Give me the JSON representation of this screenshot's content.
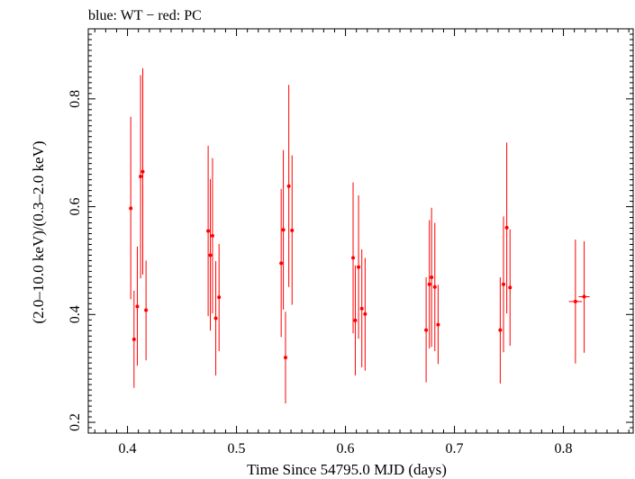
{
  "chart_data": {
    "type": "scatter",
    "title": "blue: WT − red: PC",
    "xlabel": "Time Since 54795.0 MJD (days)",
    "ylabel": "(2.0–10.0 keV)/(0.3–2.0 keV)",
    "xlim": [
      0.364,
      0.864
    ],
    "ylim": [
      0.18,
      0.93
    ],
    "xticks": [
      0.4,
      0.5,
      0.6,
      0.7,
      0.8
    ],
    "xtick_labels": [
      "0.4",
      "0.5",
      "0.6",
      "0.7",
      "0.8"
    ],
    "yticks": [
      0.2,
      0.4,
      0.6,
      0.8
    ],
    "ytick_labels": [
      "0.2",
      "0.4",
      "0.6",
      "0.8"
    ],
    "grid": false,
    "series": [
      {
        "color": "#ff0000",
        "points": [
          {
            "x": 0.403,
            "y": 0.597,
            "ylo": 0.428,
            "yhi": 0.767
          },
          {
            "x": 0.406,
            "y": 0.354,
            "ylo": 0.264,
            "yhi": 0.444
          },
          {
            "x": 0.409,
            "y": 0.415,
            "ylo": 0.305,
            "yhi": 0.526
          },
          {
            "x": 0.412,
            "y": 0.656,
            "ylo": 0.467,
            "yhi": 0.844
          },
          {
            "x": 0.414,
            "y": 0.665,
            "ylo": 0.474,
            "yhi": 0.857
          },
          {
            "x": 0.417,
            "y": 0.408,
            "ylo": 0.315,
            "yhi": 0.5
          },
          {
            "x": 0.474,
            "y": 0.555,
            "ylo": 0.397,
            "yhi": 0.713
          },
          {
            "x": 0.476,
            "y": 0.51,
            "ylo": 0.37,
            "yhi": 0.651
          },
          {
            "x": 0.478,
            "y": 0.546,
            "ylo": 0.402,
            "yhi": 0.69
          },
          {
            "x": 0.481,
            "y": 0.393,
            "ylo": 0.287,
            "yhi": 0.499
          },
          {
            "x": 0.484,
            "y": 0.432,
            "ylo": 0.332,
            "yhi": 0.531
          },
          {
            "x": 0.541,
            "y": 0.495,
            "ylo": 0.358,
            "yhi": 0.633
          },
          {
            "x": 0.543,
            "y": 0.557,
            "ylo": 0.409,
            "yhi": 0.705
          },
          {
            "x": 0.545,
            "y": 0.32,
            "ylo": 0.235,
            "yhi": 0.405
          },
          {
            "x": 0.548,
            "y": 0.638,
            "ylo": 0.451,
            "yhi": 0.826
          },
          {
            "x": 0.551,
            "y": 0.556,
            "ylo": 0.418,
            "yhi": 0.695
          },
          {
            "x": 0.607,
            "y": 0.505,
            "ylo": 0.365,
            "yhi": 0.645
          },
          {
            "x": 0.609,
            "y": 0.389,
            "ylo": 0.287,
            "yhi": 0.491
          },
          {
            "x": 0.612,
            "y": 0.488,
            "ylo": 0.355,
            "yhi": 0.621
          },
          {
            "x": 0.615,
            "y": 0.411,
            "ylo": 0.302,
            "yhi": 0.521
          },
          {
            "x": 0.618,
            "y": 0.401,
            "ylo": 0.296,
            "yhi": 0.505
          },
          {
            "x": 0.674,
            "y": 0.371,
            "ylo": 0.274,
            "yhi": 0.469
          },
          {
            "x": 0.677,
            "y": 0.456,
            "ylo": 0.337,
            "yhi": 0.575
          },
          {
            "x": 0.679,
            "y": 0.469,
            "ylo": 0.34,
            "yhi": 0.598
          },
          {
            "x": 0.682,
            "y": 0.451,
            "ylo": 0.332,
            "yhi": 0.57
          },
          {
            "x": 0.685,
            "y": 0.381,
            "ylo": 0.308,
            "yhi": 0.455
          },
          {
            "x": 0.742,
            "y": 0.371,
            "ylo": 0.272,
            "yhi": 0.469
          },
          {
            "x": 0.745,
            "y": 0.456,
            "ylo": 0.33,
            "yhi": 0.582
          },
          {
            "x": 0.748,
            "y": 0.561,
            "ylo": 0.402,
            "yhi": 0.719
          },
          {
            "x": 0.751,
            "y": 0.45,
            "ylo": 0.342,
            "yhi": 0.558
          },
          {
            "x": 0.811,
            "y": 0.424,
            "ylo": 0.309,
            "yhi": 0.539,
            "xlo": 0.805,
            "xhi": 0.817
          },
          {
            "x": 0.819,
            "y": 0.433,
            "ylo": 0.329,
            "yhi": 0.536,
            "xlo": 0.814,
            "xhi": 0.824
          }
        ]
      }
    ]
  }
}
